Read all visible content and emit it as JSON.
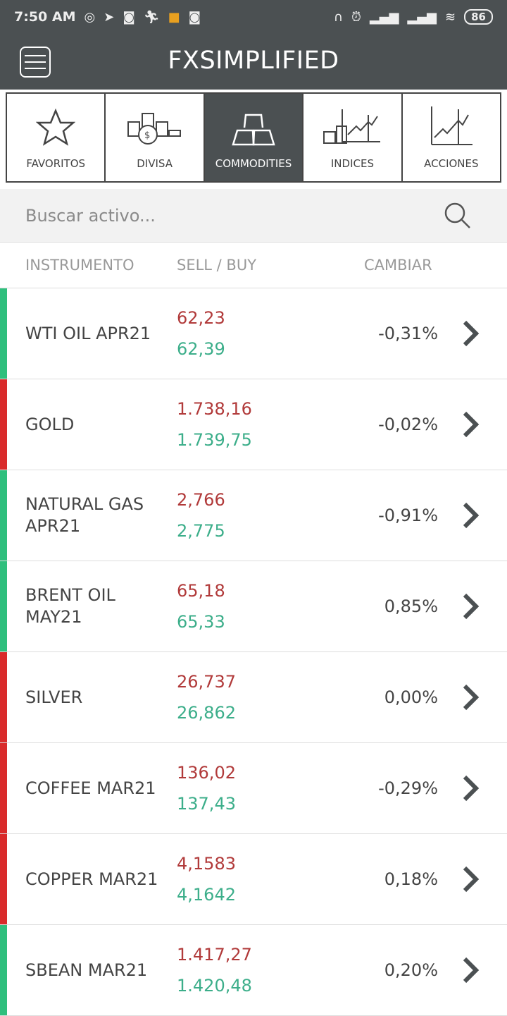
{
  "status_bar": {
    "time": "7:50 AM",
    "battery": "86"
  },
  "header": {
    "title": "FXSIMPLIFIED"
  },
  "tabs": [
    {
      "label": "FAVORITOS",
      "icon": "star-icon"
    },
    {
      "label": "DIVISA",
      "icon": "coins-icon"
    },
    {
      "label": "COMMODITIES",
      "icon": "gold-bars-icon",
      "active": true
    },
    {
      "label": "INDICES",
      "icon": "index-chart-icon"
    },
    {
      "label": "ACCIONES",
      "icon": "stock-chart-icon"
    }
  ],
  "search": {
    "placeholder": "Buscar activo..."
  },
  "columns": {
    "instrument": "INSTRUMENTO",
    "sellbuy": "SELL / BUY",
    "change": "CAMBIAR"
  },
  "colors": {
    "up": "#2fbf7d",
    "down": "#d92b2b",
    "sell": "#b13a3a",
    "buy": "#3cae8a",
    "header": "#4b5052"
  },
  "rows": [
    {
      "name": "WTI OIL APR21",
      "sell": "62,23",
      "buy": "62,39",
      "change": "-0,31%",
      "trend": "up"
    },
    {
      "name": "GOLD",
      "sell": "1.738,16",
      "buy": "1.739,75",
      "change": "-0,02%",
      "trend": "down"
    },
    {
      "name": "NATURAL GAS APR21",
      "sell": "2,766",
      "buy": "2,775",
      "change": "-0,91%",
      "trend": "up"
    },
    {
      "name": "BRENT OIL MAY21",
      "sell": "65,18",
      "buy": "65,33",
      "change": "0,85%",
      "trend": "up"
    },
    {
      "name": "SILVER",
      "sell": "26,737",
      "buy": "26,862",
      "change": "0,00%",
      "trend": "down"
    },
    {
      "name": "COFFEE MAR21",
      "sell": "136,02",
      "buy": "137,43",
      "change": "-0,29%",
      "trend": "down"
    },
    {
      "name": "COPPER MAR21",
      "sell": "4,1583",
      "buy": "4,1642",
      "change": "0,18%",
      "trend": "down"
    },
    {
      "name": "SBEAN MAR21",
      "sell": "1.417,27",
      "buy": "1.420,48",
      "change": "0,20%",
      "trend": "up"
    }
  ]
}
